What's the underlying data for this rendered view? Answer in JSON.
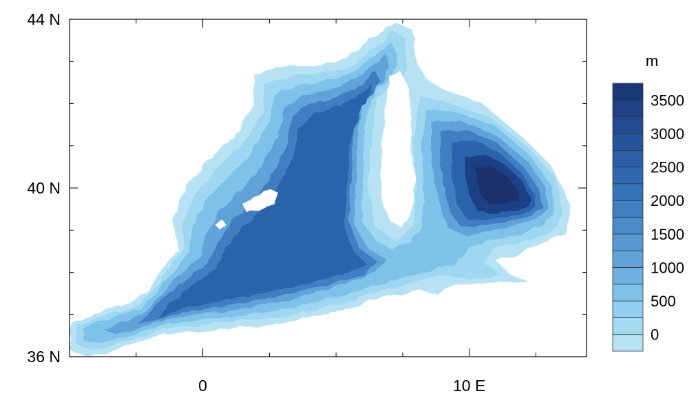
{
  "map": {
    "y_ticks": [
      {
        "value": 44,
        "label": "44 N"
      },
      {
        "value": 40,
        "label": "40 N"
      },
      {
        "value": 36,
        "label": "36 N"
      }
    ],
    "x_ticks": [
      {
        "value": 0,
        "label": "0"
      },
      {
        "value": 10,
        "label": "10 E"
      }
    ],
    "lat_range": [
      36,
      44
    ],
    "lon_range": [
      -5,
      14.4
    ],
    "colorbar": {
      "unit": "m",
      "levels": [
        -250,
        0,
        250,
        500,
        750,
        1000,
        1250,
        1500,
        1750,
        2000,
        2250,
        2500,
        2750,
        3000,
        3250,
        3500,
        3750
      ],
      "colors": [
        "#b6e2f4",
        "#a4daf2",
        "#91d0f0",
        "#7ec2ea",
        "#6cb1e1",
        "#5fa3d9",
        "#5797d2",
        "#4b8bca",
        "#3f7ec1",
        "#3674b9",
        "#2f68b0",
        "#2a5ea7",
        "#26549d",
        "#224a91",
        "#1f4185",
        "#1c3776"
      ],
      "labels": [
        {
          "value": 0,
          "label": "0"
        },
        {
          "value": 500,
          "label": "500"
        },
        {
          "value": 1000,
          "label": "1000"
        },
        {
          "value": 1500,
          "label": "1500"
        },
        {
          "value": 2000,
          "label": "2000"
        },
        {
          "value": 2500,
          "label": "2500"
        },
        {
          "value": 3000,
          "label": "3000"
        },
        {
          "value": 3500,
          "label": "3500"
        }
      ]
    }
  }
}
